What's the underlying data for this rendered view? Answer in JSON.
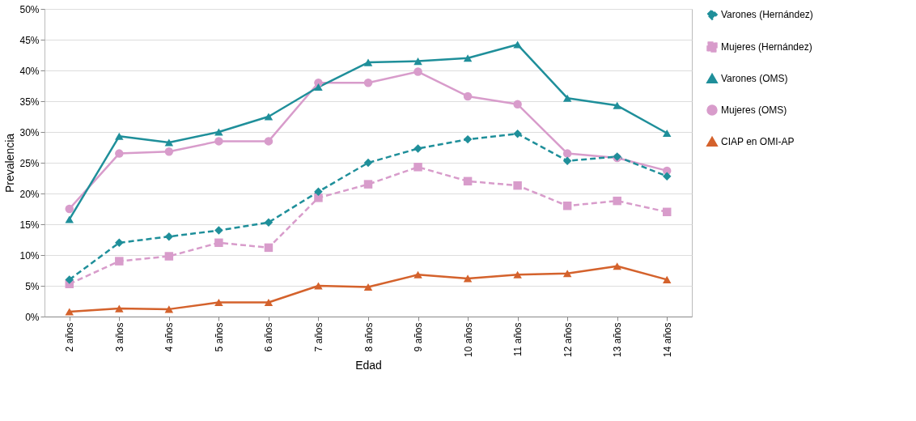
{
  "chart_data": {
    "type": "line",
    "xlabel": "Edad",
    "ylabel": "Prevalencia",
    "categories": [
      "2 años",
      "3 años",
      "4 años",
      "5 años",
      "6 años",
      "7 años",
      "8 años",
      "9 años",
      "10 años",
      "11 años",
      "12 años",
      "13 años",
      "14 años"
    ],
    "series": [
      {
        "name": "Varones (Hernández)",
        "color": "#1f8f9a",
        "marker": "diamond",
        "line_style": "dashed",
        "values": [
          6,
          12,
          13,
          14,
          15.3,
          20.3,
          25,
          27.3,
          28.8,
          29.7,
          25.3,
          26,
          22.8
        ]
      },
      {
        "name": "Mujeres (Hernández)",
        "color": "#d89ccb",
        "marker": "square",
        "line_style": "dashed",
        "values": [
          5.3,
          9,
          9.8,
          12,
          11.2,
          19.3,
          21.5,
          24.3,
          22,
          21.3,
          18,
          18.8,
          17
        ]
      },
      {
        "name": "Varones (OMS)",
        "color": "#1f8f9a",
        "marker": "triangle",
        "line_style": "solid",
        "values": [
          15.8,
          29.3,
          28.3,
          30,
          32.5,
          37.3,
          41.3,
          41.5,
          42,
          44.2,
          35.5,
          34.3,
          29.8
        ]
      },
      {
        "name": "Mujeres (OMS)",
        "color": "#d89ccb",
        "marker": "circle",
        "line_style": "solid",
        "values": [
          17.5,
          26.5,
          26.8,
          28.5,
          28.5,
          38,
          38,
          39.8,
          35.8,
          34.5,
          26.5,
          25.8,
          23.7
        ]
      },
      {
        "name": "CIAP en OMI-AP",
        "color": "#d4622c",
        "marker": "triangle",
        "line_style": "solid",
        "values": [
          0.8,
          1.3,
          1.2,
          2.3,
          2.3,
          5,
          4.8,
          6.8,
          6.2,
          6.8,
          7,
          8.2,
          6
        ]
      }
    ],
    "ylim": [
      0,
      50
    ],
    "yticks": [
      {
        "value": 0,
        "label": "0%"
      },
      {
        "value": 5,
        "label": "5%"
      },
      {
        "value": 10,
        "label": "10%"
      },
      {
        "value": 15,
        "label": "15%"
      },
      {
        "value": 20,
        "label": "20%"
      },
      {
        "value": 25,
        "label": "25%"
      },
      {
        "value": 30,
        "label": "30%"
      },
      {
        "value": 35,
        "label": "35%"
      },
      {
        "value": 40,
        "label": "40%"
      },
      {
        "value": 45,
        "label": "45%"
      },
      {
        "value": 50,
        "label": "50%"
      }
    ],
    "grid": "y",
    "legend": "right"
  }
}
